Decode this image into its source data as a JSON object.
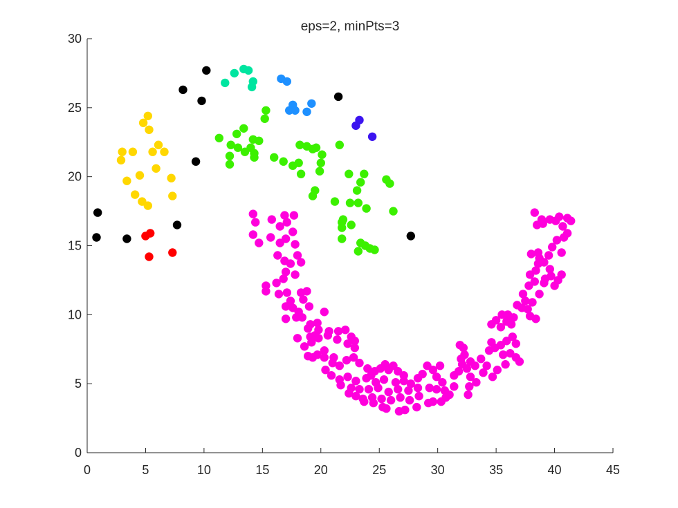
{
  "chart_data": {
    "type": "scatter",
    "title": "eps=2, minPts=3",
    "xlabel": "",
    "ylabel": "",
    "xlim": [
      0,
      45
    ],
    "ylim": [
      0,
      30
    ],
    "xticks": [
      0,
      5,
      10,
      15,
      20,
      25,
      30,
      35,
      40,
      45
    ],
    "yticks": [
      0,
      5,
      10,
      15,
      20,
      25,
      30
    ],
    "grid": false,
    "legend": "none",
    "series": [
      {
        "color": "#000000",
        "points": [
          [
            0.9,
            17.4
          ],
          [
            0.8,
            15.6
          ],
          [
            3.4,
            15.5
          ],
          [
            7.7,
            16.5
          ],
          [
            8.2,
            26.3
          ],
          [
            9.8,
            25.5
          ],
          [
            9.3,
            21.1
          ],
          [
            10.2,
            27.7
          ],
          [
            21.5,
            25.8
          ],
          [
            27.7,
            15.7
          ]
        ]
      },
      {
        "color": "#ff0000",
        "points": [
          [
            5.0,
            15.7
          ],
          [
            5.4,
            15.9
          ],
          [
            5.3,
            14.2
          ],
          [
            7.3,
            14.5
          ]
        ]
      },
      {
        "color": "#ffd700",
        "points": [
          [
            3.0,
            21.8
          ],
          [
            3.9,
            21.8
          ],
          [
            2.9,
            21.2
          ],
          [
            3.4,
            19.7
          ],
          [
            4.5,
            20.1
          ],
          [
            5.2,
            24.4
          ],
          [
            4.8,
            23.9
          ],
          [
            5.3,
            23.4
          ],
          [
            5.6,
            21.8
          ],
          [
            6.1,
            22.3
          ],
          [
            6.6,
            21.8
          ],
          [
            5.9,
            20.6
          ],
          [
            7.2,
            19.9
          ],
          [
            7.3,
            18.6
          ],
          [
            4.1,
            18.7
          ],
          [
            4.7,
            18.2
          ],
          [
            5.2,
            17.9
          ]
        ]
      },
      {
        "color": "#00e5a0",
        "points": [
          [
            11.8,
            26.8
          ],
          [
            12.6,
            27.5
          ],
          [
            13.4,
            27.8
          ],
          [
            13.8,
            27.7
          ],
          [
            14.2,
            26.9
          ],
          [
            14.1,
            26.5
          ]
        ]
      },
      {
        "color": "#1e90ff",
        "points": [
          [
            16.6,
            27.1
          ],
          [
            17.1,
            26.9
          ],
          [
            17.6,
            25.2
          ],
          [
            17.3,
            24.8
          ],
          [
            17.8,
            24.8
          ],
          [
            18.8,
            24.7
          ],
          [
            19.2,
            25.3
          ]
        ]
      },
      {
        "color": "#3c14f0",
        "points": [
          [
            23.3,
            24.1
          ],
          [
            23.0,
            23.7
          ],
          [
            24.4,
            22.9
          ]
        ]
      },
      {
        "color": "#3cf000",
        "points": [
          [
            11.3,
            22.8
          ],
          [
            12.3,
            22.3
          ],
          [
            12.8,
            23.1
          ],
          [
            13.4,
            23.5
          ],
          [
            12.9,
            22.1
          ],
          [
            13.5,
            21.8
          ],
          [
            14.0,
            22.1
          ],
          [
            14.2,
            22.7
          ],
          [
            14.7,
            22.6
          ],
          [
            12.2,
            21.5
          ],
          [
            12.2,
            20.9
          ],
          [
            14.3,
            21.7
          ],
          [
            14.3,
            21.4
          ],
          [
            15.3,
            24.8
          ],
          [
            15.2,
            24.2
          ],
          [
            16.0,
            21.4
          ],
          [
            16.8,
            21.1
          ],
          [
            17.6,
            20.8
          ],
          [
            18.1,
            21.0
          ],
          [
            18.2,
            22.3
          ],
          [
            18.8,
            22.2
          ],
          [
            19.3,
            22.0
          ],
          [
            19.6,
            22.1
          ],
          [
            20.1,
            21.6
          ],
          [
            20.0,
            21.0
          ],
          [
            19.9,
            20.4
          ],
          [
            18.3,
            20.2
          ],
          [
            21.6,
            22.3
          ],
          [
            22.4,
            20.2
          ],
          [
            23.7,
            20.2
          ],
          [
            23.4,
            19.6
          ],
          [
            23.1,
            19.0
          ],
          [
            19.5,
            19.0
          ],
          [
            19.3,
            18.6
          ],
          [
            21.2,
            18.2
          ],
          [
            21.9,
            16.9
          ],
          [
            21.8,
            16.7
          ],
          [
            21.8,
            16.3
          ],
          [
            22.6,
            16.5
          ],
          [
            21.8,
            15.5
          ],
          [
            22.5,
            18.1
          ],
          [
            23.2,
            18.1
          ],
          [
            23.9,
            17.7
          ],
          [
            25.6,
            19.8
          ],
          [
            25.9,
            19.5
          ],
          [
            26.2,
            17.5
          ],
          [
            23.4,
            15.2
          ],
          [
            23.8,
            15.0
          ],
          [
            24.2,
            14.8
          ],
          [
            24.6,
            14.7
          ],
          [
            23.2,
            14.6
          ]
        ]
      },
      {
        "color": "#ff00dc",
        "points": [
          [
            14.2,
            17.3
          ],
          [
            14.4,
            16.7
          ],
          [
            14.2,
            15.8
          ],
          [
            14.7,
            15.2
          ],
          [
            15.7,
            15.6
          ],
          [
            15.8,
            16.9
          ],
          [
            16.5,
            16.4
          ],
          [
            17.1,
            16.7
          ],
          [
            16.9,
            17.2
          ],
          [
            17.7,
            17.2
          ],
          [
            17.6,
            16.0
          ],
          [
            16.5,
            15.2
          ],
          [
            17.0,
            15.5
          ],
          [
            17.8,
            15.1
          ],
          [
            18.0,
            14.3
          ],
          [
            16.3,
            14.3
          ],
          [
            16.9,
            13.9
          ],
          [
            17.4,
            13.7
          ],
          [
            18.3,
            13.8
          ],
          [
            17.0,
            13.1
          ],
          [
            17.8,
            12.9
          ],
          [
            16.8,
            12.6
          ],
          [
            16.2,
            12.3
          ],
          [
            15.3,
            12.1
          ],
          [
            15.3,
            11.7
          ],
          [
            16.4,
            11.5
          ],
          [
            17.1,
            11.6
          ],
          [
            17.4,
            11.0
          ],
          [
            18.3,
            11.6
          ],
          [
            18.8,
            11.7
          ],
          [
            18.5,
            11.1
          ],
          [
            17.0,
            10.6
          ],
          [
            17.6,
            10.5
          ],
          [
            18.1,
            10.2
          ],
          [
            19.0,
            10.6
          ],
          [
            20.3,
            10.2
          ],
          [
            17.0,
            9.7
          ],
          [
            17.9,
            9.8
          ],
          [
            18.4,
            9.8
          ],
          [
            19.1,
            9.3
          ],
          [
            18.9,
            9.0
          ],
          [
            19.7,
            9.4
          ],
          [
            19.8,
            8.9
          ],
          [
            20.7,
            8.8
          ],
          [
            21.5,
            8.8
          ],
          [
            22.1,
            8.9
          ],
          [
            22.6,
            8.4
          ],
          [
            22.9,
            8.1
          ],
          [
            19.1,
            8.4
          ],
          [
            19.5,
            8.5
          ],
          [
            19.8,
            8.3
          ],
          [
            20.6,
            8.5
          ],
          [
            21.4,
            8.2
          ],
          [
            22.3,
            7.9
          ],
          [
            22.9,
            7.6
          ],
          [
            18.0,
            8.3
          ],
          [
            18.6,
            7.7
          ],
          [
            19.2,
            8.0
          ],
          [
            19.7,
            7.1
          ],
          [
            20.3,
            7.4
          ],
          [
            18.9,
            7.0
          ],
          [
            19.3,
            6.9
          ],
          [
            20.3,
            6.9
          ],
          [
            21.1,
            6.9
          ],
          [
            21.0,
            6.5
          ],
          [
            21.6,
            6.3
          ],
          [
            22.2,
            6.7
          ],
          [
            22.8,
            6.9
          ],
          [
            23.3,
            6.5
          ],
          [
            24.0,
            6.1
          ],
          [
            24.3,
            5.6
          ],
          [
            24.6,
            5.9
          ],
          [
            25.1,
            6.1
          ],
          [
            25.5,
            6.4
          ],
          [
            25.8,
            6.0
          ],
          [
            26.2,
            6.3
          ],
          [
            26.6,
            5.9
          ],
          [
            27.1,
            5.6
          ],
          [
            20.4,
            6.0
          ],
          [
            20.9,
            5.6
          ],
          [
            21.6,
            5.3
          ],
          [
            22.3,
            5.5
          ],
          [
            23.0,
            5.2
          ],
          [
            23.9,
            5.4
          ],
          [
            24.7,
            5.1
          ],
          [
            25.4,
            5.3
          ],
          [
            26.4,
            5.1
          ],
          [
            27.1,
            5.2
          ],
          [
            27.7,
            5.0
          ],
          [
            21.7,
            4.9
          ],
          [
            22.6,
            4.7
          ],
          [
            23.3,
            4.6
          ],
          [
            24.1,
            4.6
          ],
          [
            24.9,
            4.7
          ],
          [
            25.8,
            4.4
          ],
          [
            26.6,
            4.6
          ],
          [
            27.5,
            4.5
          ],
          [
            28.3,
            4.7
          ],
          [
            22.4,
            4.3
          ],
          [
            23.0,
            4.1
          ],
          [
            23.6,
            3.9
          ],
          [
            24.4,
            4.0
          ],
          [
            25.2,
            3.9
          ],
          [
            26.0,
            3.8
          ],
          [
            26.8,
            4.0
          ],
          [
            27.6,
            3.8
          ],
          [
            28.4,
            4.1
          ],
          [
            23.7,
            3.7
          ],
          [
            24.5,
            3.6
          ],
          [
            25.3,
            3.3
          ],
          [
            25.6,
            3.2
          ],
          [
            26.7,
            3.0
          ],
          [
            27.2,
            3.1
          ],
          [
            28.2,
            3.3
          ],
          [
            29.2,
            3.6
          ],
          [
            29.6,
            3.7
          ],
          [
            30.3,
            3.7
          ],
          [
            28.3,
            5.4
          ],
          [
            28.7,
            5.7
          ],
          [
            29.1,
            6.3
          ],
          [
            29.6,
            6.0
          ],
          [
            30.2,
            6.3
          ],
          [
            29.9,
            5.5
          ],
          [
            29.3,
            4.7
          ],
          [
            29.9,
            4.6
          ],
          [
            30.6,
            4.5
          ],
          [
            31.0,
            4.2
          ],
          [
            31.4,
            4.8
          ],
          [
            30.4,
            5.1
          ],
          [
            30.7,
            4.0
          ],
          [
            31.4,
            5.6
          ],
          [
            31.8,
            5.9
          ],
          [
            32.1,
            6.4
          ],
          [
            32.3,
            7.1
          ],
          [
            32.5,
            6.1
          ],
          [
            32.8,
            5.5
          ],
          [
            32.7,
            4.8
          ],
          [
            32.6,
            4.2
          ],
          [
            33.3,
            5.1
          ],
          [
            33.9,
            5.8
          ],
          [
            34.2,
            6.3
          ],
          [
            33.7,
            6.8
          ],
          [
            34.4,
            7.4
          ],
          [
            34.9,
            7.6
          ],
          [
            34.6,
            8.0
          ],
          [
            35.4,
            7.8
          ],
          [
            35.9,
            8.1
          ],
          [
            36.4,
            8.4
          ],
          [
            36.7,
            7.9
          ],
          [
            35.6,
            7.1
          ],
          [
            36.2,
            7.2
          ],
          [
            36.7,
            6.9
          ],
          [
            37.0,
            6.6
          ],
          [
            35.8,
            6.4
          ],
          [
            35.1,
            6.0
          ],
          [
            34.7,
            5.5
          ],
          [
            33.2,
            6.3
          ],
          [
            32.8,
            6.6
          ],
          [
            32.0,
            6.8
          ],
          [
            32.2,
            7.6
          ],
          [
            31.9,
            7.8
          ],
          [
            34.6,
            9.3
          ],
          [
            35.0,
            9.6
          ],
          [
            35.4,
            9.1
          ],
          [
            35.9,
            9.5
          ],
          [
            36.3,
            9.3
          ],
          [
            35.5,
            10.0
          ],
          [
            36.0,
            10.0
          ],
          [
            36.5,
            9.8
          ],
          [
            36.8,
            10.7
          ],
          [
            37.2,
            10.5
          ],
          [
            37.7,
            10.4
          ],
          [
            37.5,
            11.0
          ],
          [
            38.1,
            10.9
          ],
          [
            38.4,
            9.7
          ],
          [
            37.9,
            9.9
          ],
          [
            37.3,
            11.5
          ],
          [
            37.8,
            12.1
          ],
          [
            38.3,
            12.4
          ],
          [
            37.9,
            12.9
          ],
          [
            38.4,
            13.2
          ],
          [
            38.6,
            13.7
          ],
          [
            38.0,
            14.4
          ],
          [
            38.7,
            14.1
          ],
          [
            39.1,
            13.8
          ],
          [
            39.6,
            13.3
          ],
          [
            39.2,
            12.6
          ],
          [
            39.7,
            12.8
          ],
          [
            40.3,
            12.5
          ],
          [
            40.6,
            12.9
          ],
          [
            40.0,
            12.1
          ],
          [
            39.1,
            12.3
          ],
          [
            38.6,
            14.5
          ],
          [
            39.5,
            14.3
          ],
          [
            39.8,
            14.9
          ],
          [
            40.2,
            15.4
          ],
          [
            40.8,
            15.6
          ],
          [
            40.6,
            14.5
          ],
          [
            41.1,
            15.9
          ],
          [
            40.7,
            16.4
          ],
          [
            40.1,
            16.8
          ],
          [
            39.6,
            16.9
          ],
          [
            39.0,
            16.6
          ],
          [
            38.5,
            16.5
          ],
          [
            38.3,
            17.4
          ],
          [
            38.9,
            16.9
          ],
          [
            40.4,
            17.1
          ],
          [
            41.1,
            17.0
          ],
          [
            41.4,
            16.8
          ],
          [
            38.7,
            11.5
          ]
        ]
      }
    ]
  }
}
